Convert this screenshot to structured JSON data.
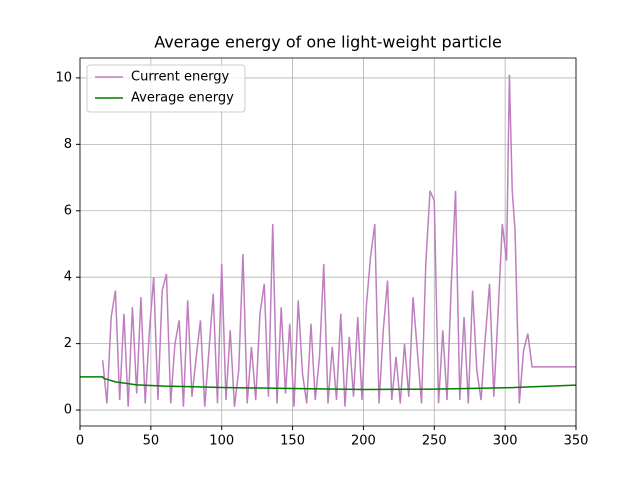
{
  "chart_data": {
    "type": "line",
    "title": "Average energy of one light-weight particle",
    "xlim": [
      0,
      350
    ],
    "ylim": [
      -0.48,
      10.6
    ],
    "xticks": [
      0,
      50,
      100,
      150,
      200,
      250,
      300,
      350
    ],
    "yticks": [
      0,
      2,
      4,
      6,
      8,
      10
    ],
    "grid": true,
    "legend": "upper left",
    "series": [
      {
        "name": "Current energy",
        "color": "#bf7fbf",
        "x": [
          16,
          19,
          22,
          25,
          28,
          31,
          34,
          37,
          40,
          43,
          46,
          49,
          52,
          55,
          58,
          61,
          64,
          67,
          70,
          73,
          76,
          79,
          82,
          85,
          88,
          91,
          94,
          97,
          100,
          103,
          106,
          109,
          112,
          115,
          118,
          121,
          124,
          127,
          130,
          133,
          136,
          139,
          142,
          145,
          148,
          151,
          154,
          157,
          160,
          163,
          166,
          169,
          172,
          175,
          178,
          181,
          184,
          187,
          190,
          193,
          196,
          199,
          202,
          205,
          208,
          211,
          214,
          217,
          220,
          223,
          226,
          229,
          232,
          235,
          238,
          241,
          244,
          247,
          250,
          253,
          256,
          259,
          262,
          265,
          268,
          271,
          274,
          277,
          280,
          283,
          286,
          289,
          292,
          295,
          298,
          301,
          303,
          305,
          307,
          310,
          313,
          316,
          319,
          350
        ],
        "values": [
          1.5,
          0.2,
          2.8,
          3.6,
          0.3,
          2.9,
          0.1,
          3.1,
          0.5,
          3.4,
          0.2,
          2.4,
          4.0,
          0.3,
          3.6,
          4.1,
          0.2,
          2.0,
          2.7,
          0.1,
          3.3,
          0.4,
          1.6,
          2.7,
          0.1,
          1.8,
          3.5,
          0.2,
          4.4,
          0.3,
          2.4,
          0.1,
          1.2,
          4.7,
          0.2,
          1.9,
          0.3,
          2.9,
          3.8,
          0.4,
          5.6,
          0.2,
          3.1,
          0.5,
          2.6,
          0.1,
          3.3,
          1.1,
          0.2,
          2.6,
          0.3,
          1.6,
          4.4,
          0.2,
          1.9,
          0.3,
          2.9,
          0.1,
          2.2,
          0.4,
          2.8,
          0.3,
          3.1,
          4.6,
          5.6,
          0.2,
          2.4,
          3.9,
          0.3,
          1.6,
          0.2,
          2.0,
          0.4,
          3.4,
          1.8,
          0.2,
          4.4,
          6.6,
          6.3,
          0.2,
          2.4,
          0.3,
          3.8,
          6.6,
          0.3,
          2.8,
          0.2,
          3.6,
          1.2,
          0.3,
          2.2,
          3.8,
          0.4,
          2.9,
          5.6,
          4.5,
          10.1,
          6.6,
          5.4,
          0.2,
          1.8,
          2.3,
          1.3,
          1.3
        ]
      },
      {
        "name": "Average energy",
        "color": "#008000",
        "x": [
          0,
          16,
          17,
          25,
          40,
          60,
          80,
          100,
          150,
          200,
          250,
          300,
          320,
          350
        ],
        "values": [
          1.0,
          1.0,
          0.95,
          0.85,
          0.76,
          0.72,
          0.7,
          0.68,
          0.65,
          0.62,
          0.63,
          0.67,
          0.7,
          0.75
        ]
      }
    ]
  }
}
